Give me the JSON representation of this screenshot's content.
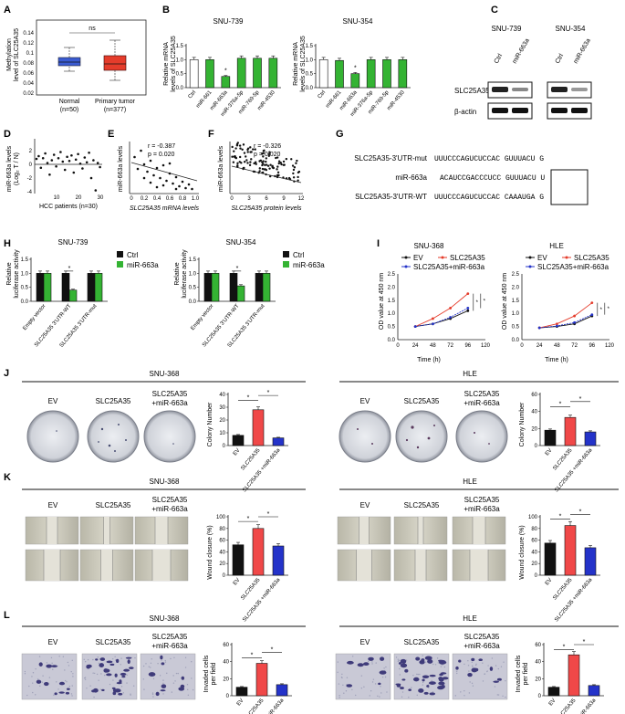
{
  "panels": {
    "A": {
      "label": "A",
      "ylabel_line1": "Methylation",
      "ylabel_line2": "level of SLC25A35",
      "ns": "ns",
      "yticks": [
        "0.14",
        "0.12",
        "0.1",
        "0.08",
        "0.06",
        "0.04",
        "0.02"
      ],
      "groups": [
        {
          "name": "Normal",
          "n": "(n=50)"
        },
        {
          "name": "Primary tumor",
          "n": "(n=377)"
        }
      ]
    },
    "B": {
      "label": "B",
      "left_title": "SNU-739",
      "right_title": "SNU-354",
      "ylabel_line1": "Relative mRNA",
      "ylabel_line2": "levels of SLC25A35",
      "yticks": [
        "1.5",
        "1.0",
        "0.5",
        "0.0"
      ],
      "categories": [
        "Ctrl",
        "miR-661",
        "miR-663a",
        "miR-376a-5p",
        "miR-769-5p",
        "miR-4530"
      ],
      "star": "*"
    },
    "C": {
      "label": "C",
      "cell1": "SNU-739",
      "cell2": "SNU-354",
      "lanes": [
        "Ctrl",
        "miR-663a"
      ],
      "rows": [
        "SLC25A35",
        "β-actin"
      ]
    },
    "D": {
      "label": "D",
      "ylabel_line1": "miR-663a levels",
      "ylabel_line2": "(Log₂ T / N)",
      "xlabel": "HCC patients (n=30)",
      "xticks": [
        "10",
        "20",
        "30"
      ],
      "yticks": [
        "2",
        "0",
        "-2",
        "-4"
      ]
    },
    "E": {
      "label": "E",
      "r": "r = -0.387",
      "p": "p = 0.020",
      "ylabel": "miR-663a levels",
      "xlabel": "SLC25A35 mRNA levels",
      "xticks": [
        "0",
        "0.2",
        "0.4",
        "0.6",
        "0.8",
        "1.0"
      ]
    },
    "F": {
      "label": "F",
      "r": "r = -0.326",
      "p": "p = 0.020",
      "ylabel": "miR-663a levels",
      "xlabel": "SLC25A35 protein levels",
      "xticks": [
        "0",
        "3",
        "6",
        "9",
        "12"
      ]
    },
    "G": {
      "label": "G",
      "rows": [
        {
          "name": "SLC25A35-3'UTR-mut",
          "seq": "UUUCCCAGUCUCCAC GUUUACU G"
        },
        {
          "name": "miR-663a",
          "seq": "ACAUCCGACCCUCC GUUUACU U"
        },
        {
          "name": "SLC25A35-3'UTR-WT",
          "seq": "UUUCCCAGUCUCCAC CAAAUGA G"
        }
      ]
    },
    "H": {
      "label": "H",
      "left_title": "SNU-739",
      "right_title": "SNU-354",
      "ylabel_line1": "Relative",
      "ylabel_line2": "luciferase activity",
      "legend": [
        "Ctrl",
        "miR-663a"
      ],
      "yticks": [
        "1.5",
        "1.0",
        "0.5",
        "0.0"
      ],
      "categories": [
        "Empty vector",
        "SLC25A35 3'UTR-WT",
        "SLC25A35 3'UTR-mut"
      ],
      "star": "*"
    },
    "I": {
      "label": "I",
      "left_title": "SNU-368",
      "right_title": "HLE",
      "ylabel": "OD value at 450 nm",
      "xlabel": "Time (h)",
      "legend": [
        "EV",
        "SLC25A35",
        "SLC25A35+miR-663a"
      ],
      "xticks": [
        "0",
        "24",
        "48",
        "72",
        "96",
        "120"
      ],
      "yticks": [
        "2.5",
        "2.0",
        "1.5",
        "1.0",
        "0.5",
        "0.0"
      ],
      "star": "*"
    },
    "J": {
      "label": "J",
      "left_title": "SNU-368",
      "right_title": "HLE",
      "conditions": [
        "EV",
        "SLC25A35",
        "SLC25A35",
        "+miR-663a"
      ],
      "ylabel": "Colony Number",
      "yticks_left": [
        "40",
        "30",
        "20",
        "10",
        "0"
      ],
      "yticks_right": [
        "60",
        "40",
        "20",
        "0"
      ],
      "star": "*"
    },
    "K": {
      "label": "K",
      "left_title": "SNU-368",
      "right_title": "HLE",
      "ylabel": "Wound closure (%)",
      "yticks": [
        "100",
        "80",
        "60",
        "40",
        "20",
        "0"
      ],
      "star": "*"
    },
    "L": {
      "label": "L",
      "left_title": "SNU-368",
      "right_title": "HLE",
      "ylabel_line1": "Invaded cells",
      "ylabel_line2": "per field",
      "yticks": [
        "60",
        "40",
        "20",
        "0"
      ],
      "star": "*"
    }
  },
  "chart_data": [
    {
      "type": "box",
      "panel": "A",
      "categories": [
        "Normal",
        "Primary tumor"
      ],
      "median": [
        0.085,
        0.08
      ],
      "q1": [
        0.08,
        0.07
      ],
      "q3": [
        0.09,
        0.092
      ],
      "whisker_low": [
        0.067,
        0.05
      ],
      "whisker_high": [
        0.11,
        0.125
      ],
      "ylim": [
        0.02,
        0.14
      ]
    },
    {
      "type": "bar",
      "panel": "B-SNU-739",
      "categories": [
        "Ctrl",
        "miR-661",
        "miR-663a",
        "miR-376a-5p",
        "miR-769-5p",
        "miR-4530"
      ],
      "values": [
        1.0,
        1.0,
        0.4,
        1.05,
        1.05,
        1.05
      ],
      "ylim": [
        0,
        1.5
      ]
    },
    {
      "type": "bar",
      "panel": "B-SNU-354",
      "categories": [
        "Ctrl",
        "miR-661",
        "miR-663a",
        "miR-376a-5p",
        "miR-769-5p",
        "miR-4530"
      ],
      "values": [
        1.0,
        0.97,
        0.5,
        1.0,
        1.0,
        1.0
      ],
      "ylim": [
        0,
        1.5
      ]
    },
    {
      "type": "bar",
      "panel": "H-SNU-739",
      "categories": [
        "Empty vector",
        "SLC25A35 3'UTR-WT",
        "SLC25A35 3'UTR-mut"
      ],
      "series": [
        {
          "name": "Ctrl",
          "values": [
            1.0,
            1.0,
            1.0
          ]
        },
        {
          "name": "miR-663a",
          "values": [
            1.0,
            0.4,
            1.0
          ]
        }
      ],
      "ylim": [
        0,
        1.5
      ]
    },
    {
      "type": "bar",
      "panel": "H-SNU-354",
      "categories": [
        "Empty vector",
        "SLC25A35 3'UTR-WT",
        "SLC25A35 3'UTR-mut"
      ],
      "series": [
        {
          "name": "Ctrl",
          "values": [
            1.0,
            1.0,
            1.0
          ]
        },
        {
          "name": "miR-663a",
          "values": [
            1.0,
            0.55,
            1.0
          ]
        }
      ],
      "ylim": [
        0,
        1.5
      ]
    },
    {
      "type": "line",
      "panel": "I-SNU-368",
      "x": [
        24,
        48,
        72,
        96
      ],
      "series": [
        {
          "name": "EV",
          "values": [
            0.5,
            0.6,
            0.8,
            1.1
          ]
        },
        {
          "name": "SLC25A35",
          "values": [
            0.5,
            0.8,
            1.2,
            1.75
          ]
        },
        {
          "name": "SLC25A35+miR-663a",
          "values": [
            0.5,
            0.6,
            0.85,
            1.2
          ]
        }
      ],
      "ylim": [
        0,
        2.5
      ]
    },
    {
      "type": "line",
      "panel": "I-HLE",
      "x": [
        24,
        48,
        72,
        96
      ],
      "series": [
        {
          "name": "EV",
          "values": [
            0.45,
            0.5,
            0.6,
            0.9
          ]
        },
        {
          "name": "SLC25A35",
          "values": [
            0.45,
            0.6,
            0.9,
            1.4
          ]
        },
        {
          "name": "SLC25A35+miR-663a",
          "values": [
            0.45,
            0.52,
            0.65,
            0.95
          ]
        }
      ],
      "ylim": [
        0,
        2.5
      ]
    },
    {
      "type": "bar",
      "panel": "J-SNU-368",
      "categories": [
        "EV",
        "SLC25A35",
        "SLC25A35 +miR-663a"
      ],
      "values": [
        8,
        28,
        6
      ],
      "ylim": [
        0,
        40
      ]
    },
    {
      "type": "bar",
      "panel": "J-HLE",
      "categories": [
        "EV",
        "SLC25A35",
        "SLC25A35 +miR-663a"
      ],
      "values": [
        18,
        33,
        16
      ],
      "ylim": [
        0,
        60
      ]
    },
    {
      "type": "bar",
      "panel": "K-SNU-368",
      "categories": [
        "EV",
        "SLC25A35",
        "SLC25A35 +miR-663a"
      ],
      "values": [
        52,
        80,
        50
      ],
      "ylim": [
        0,
        100
      ]
    },
    {
      "type": "bar",
      "panel": "K-HLE",
      "categories": [
        "EV",
        "SLC25A35",
        "SLC25A35 +miR-663a"
      ],
      "values": [
        55,
        85,
        47
      ],
      "ylim": [
        0,
        100
      ]
    },
    {
      "type": "bar",
      "panel": "L-SNU-368",
      "categories": [
        "EV",
        "SLC25A35",
        "SLC25A35 +miR-663a"
      ],
      "values": [
        10,
        38,
        13
      ],
      "ylim": [
        0,
        60
      ]
    },
    {
      "type": "bar",
      "panel": "L-HLE",
      "categories": [
        "EV",
        "SLC25A35",
        "SLC25A35 +miR-663a"
      ],
      "values": [
        10,
        48,
        12
      ],
      "ylim": [
        0,
        60
      ]
    }
  ]
}
